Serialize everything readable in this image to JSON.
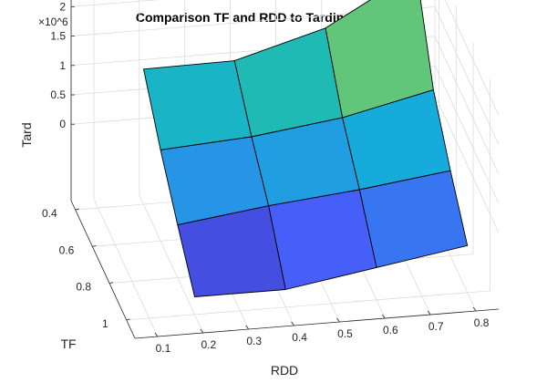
{
  "chart_data": {
    "type": "surface",
    "title": "Comparison TF and RDD to Tardiness Value",
    "xlabel": "RDD",
    "ylabel": "TF",
    "zlabel": "Tard",
    "z_exponent_label": "×10^6",
    "x_ticks": [
      "0.1",
      "0.2",
      "0.3",
      "0.4",
      "0.5",
      "0.6",
      "0.7",
      "0.8"
    ],
    "y_ticks": [
      "0.4",
      "0.6",
      "0.8",
      "1"
    ],
    "z_ticks": [
      "0",
      "0.5",
      "1",
      "1.5",
      "2"
    ],
    "grid": true,
    "colormap": "parula",
    "x": [
      0.2,
      0.4,
      0.6,
      0.8
    ],
    "y": [
      0.4,
      0.6,
      0.8,
      1.0
    ],
    "z": [
      [
        1.0,
        1.02,
        1.45,
        2.3
      ],
      [
        0.25,
        0.35,
        0.55,
        0.9
      ],
      [
        -0.4,
        -0.2,
        -0.05,
        0.15
      ],
      [
        -1.0,
        -1.0,
        -0.75,
        -0.5
      ]
    ]
  }
}
